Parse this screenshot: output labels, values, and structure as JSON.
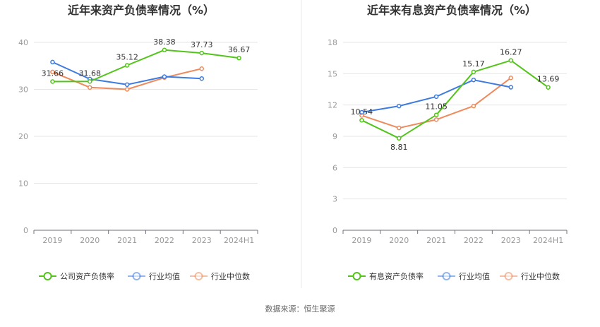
{
  "chart_data": [
    {
      "type": "line",
      "title": "近年来资产负债率情况（%）",
      "categories": [
        "2019",
        "2020",
        "2021",
        "2022",
        "2023",
        "2024H1"
      ],
      "ylim": [
        0,
        40
      ],
      "yticks": [
        0,
        10,
        20,
        30,
        40
      ],
      "grid": true,
      "legend_position": "bottom",
      "series": [
        {
          "name": "公司资产负债率",
          "color": "#52c41a",
          "values": [
            31.66,
            31.68,
            35.12,
            38.38,
            37.73,
            36.67
          ],
          "labels": [
            "31.66",
            "31.68",
            "35.12",
            "38.38",
            "37.73",
            "36.67"
          ]
        },
        {
          "name": "行业均值",
          "color": "#3d7be0",
          "values": [
            35.8,
            32.2,
            31.0,
            32.7,
            32.3,
            null
          ]
        },
        {
          "name": "行业中位数",
          "color": "#ee8a5c",
          "values": [
            33.7,
            30.4,
            30.0,
            32.5,
            34.4,
            null
          ]
        }
      ]
    },
    {
      "type": "line",
      "title": "近年来有息资产负债率情况（%）",
      "categories": [
        "2019",
        "2020",
        "2021",
        "2022",
        "2023",
        "2024H1"
      ],
      "ylim": [
        0,
        18
      ],
      "yticks": [
        0,
        3,
        6,
        9,
        12,
        15,
        18
      ],
      "grid": true,
      "legend_position": "bottom",
      "series": [
        {
          "name": "有息资产负债率",
          "color": "#52c41a",
          "values": [
            10.54,
            8.81,
            11.05,
            15.17,
            16.27,
            13.69
          ],
          "labels": [
            "10.54",
            "8.81",
            "11.05",
            "15.17",
            "16.27",
            "13.69"
          ]
        },
        {
          "name": "行业均值",
          "color": "#3d7be0",
          "values": [
            11.3,
            11.9,
            12.8,
            14.4,
            13.7,
            null
          ]
        },
        {
          "name": "行业中位数",
          "color": "#ee8a5c",
          "values": [
            11.0,
            9.8,
            10.6,
            11.9,
            14.6,
            null
          ]
        }
      ]
    }
  ],
  "footer": {
    "source": "数据来源：恒生聚源"
  }
}
